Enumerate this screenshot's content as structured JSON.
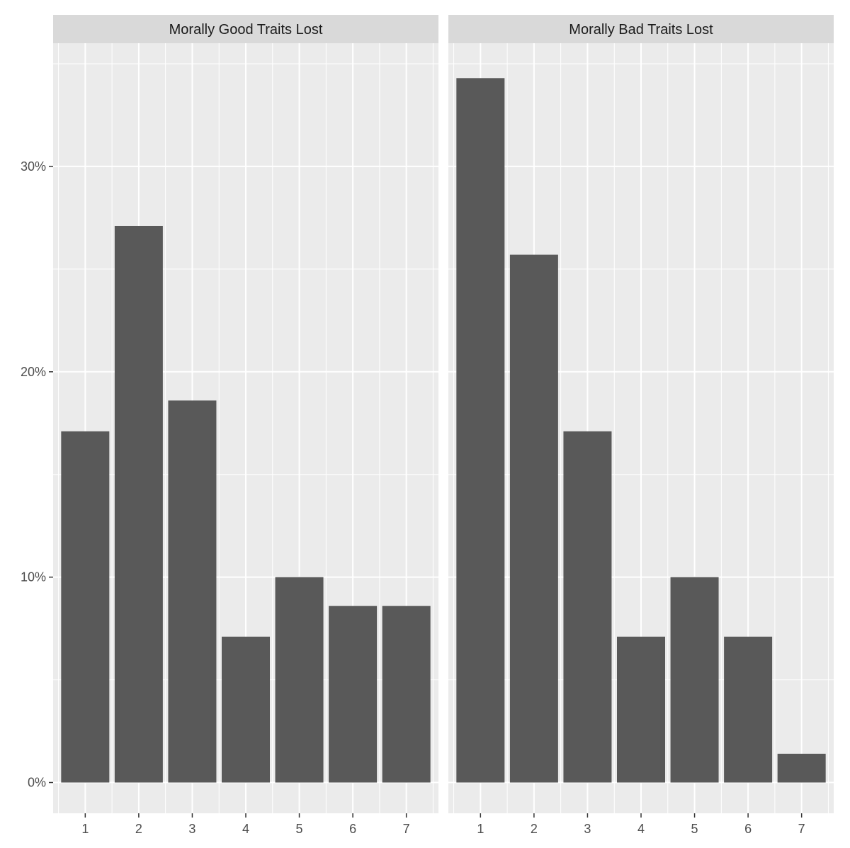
{
  "chart_data": [
    {
      "type": "bar",
      "title": "Morally Good Traits Lost",
      "categories": [
        "1",
        "2",
        "3",
        "4",
        "5",
        "6",
        "7"
      ],
      "values": [
        17.1,
        27.1,
        18.6,
        7.1,
        10.0,
        8.6,
        8.6
      ],
      "ylim": [
        -1.5,
        36.0
      ],
      "yticks": [
        0,
        10,
        20,
        30
      ],
      "ytick_labels": [
        "0%",
        "10%",
        "20%",
        "30%"
      ],
      "grid": true,
      "bar_color": "#595959"
    },
    {
      "type": "bar",
      "title": "Morally Bad Traits Lost",
      "categories": [
        "1",
        "2",
        "3",
        "4",
        "5",
        "6",
        "7"
      ],
      "values": [
        34.3,
        25.7,
        17.1,
        7.1,
        10.0,
        7.1,
        1.4
      ],
      "ylim": [
        -1.5,
        36.0
      ],
      "yticks": [
        0,
        10,
        20,
        30
      ],
      "ytick_labels": [
        "0%",
        "10%",
        "20%",
        "30%"
      ],
      "grid": true,
      "bar_color": "#595959"
    }
  ],
  "theme": {
    "panel_bg": "#ebebeb",
    "strip_bg": "#d9d9d9",
    "grid_color": "#ffffff"
  }
}
